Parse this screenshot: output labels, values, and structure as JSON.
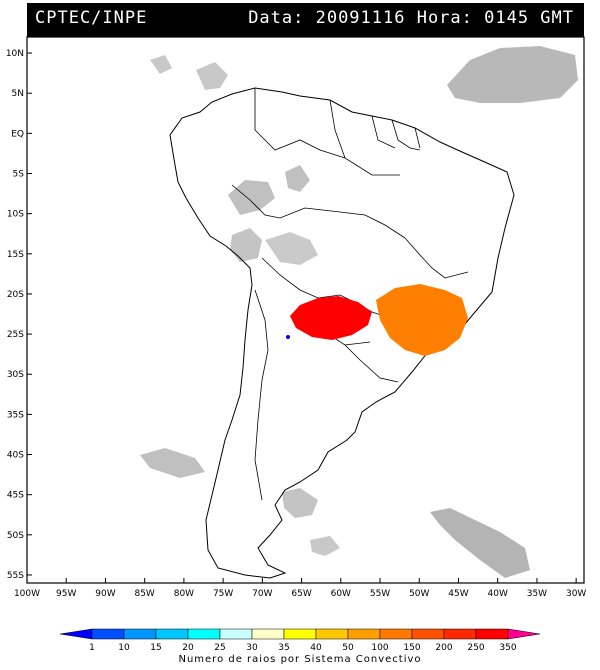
{
  "header": {
    "title": "CPTEC/INPE",
    "stamp": "Data: 20091116 Hora: 0145 GMT"
  },
  "map": {
    "lat_ticks": [
      "10N",
      "5N",
      "EQ",
      "5S",
      "10S",
      "15S",
      "20S",
      "25S",
      "30S",
      "35S",
      "40S",
      "45S",
      "50S",
      "55S"
    ],
    "lon_ticks": [
      "100W",
      "95W",
      "90W",
      "85W",
      "80W",
      "75W",
      "70W",
      "65W",
      "60W",
      "55W",
      "50W",
      "45W",
      "40W",
      "35W",
      "30W"
    ],
    "lat_range": [
      12,
      -56
    ],
    "lon_range": [
      -100,
      -29
    ],
    "regions": [
      {
        "name": "Paraguay cluster",
        "lon": -60,
        "lat": -22.5,
        "color": "#ff0000"
      },
      {
        "name": "Southeast Brazil cluster",
        "lon": -46,
        "lat": -22.5,
        "color": "#ff8000"
      }
    ]
  },
  "legend": {
    "values": [
      "1",
      "10",
      "15",
      "20",
      "25",
      "30",
      "35",
      "40",
      "50",
      "100",
      "150",
      "200",
      "250",
      "350"
    ],
    "colors": [
      "#0000ff",
      "#0050ff",
      "#0096ff",
      "#00c8ff",
      "#00ffff",
      "#c8ffff",
      "#ffffc8",
      "#ffff00",
      "#ffc800",
      "#ffa000",
      "#ff7800",
      "#ff5000",
      "#ff2800",
      "#ff0000",
      "#ff0090"
    ],
    "label": "Numero de raios por Sistema Convectivo"
  }
}
